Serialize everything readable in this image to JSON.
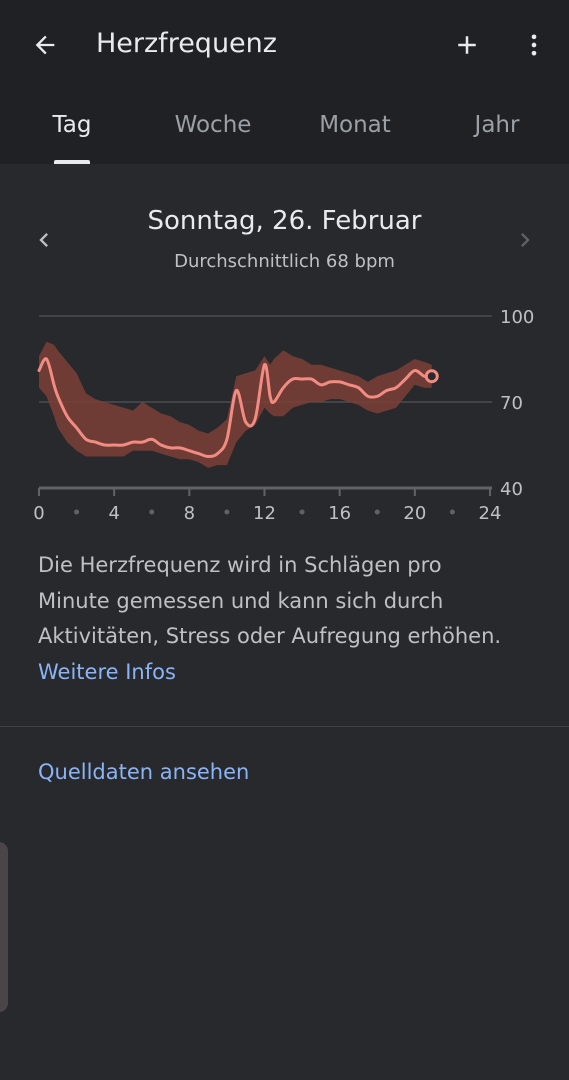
{
  "appbar": {
    "title": "Herzfrequenz",
    "back_icon": "arrow-left-icon",
    "add_icon": "plus-icon",
    "menu_icon": "more-vert-icon"
  },
  "tabs": [
    {
      "label": "Tag",
      "active": true
    },
    {
      "label": "Woche",
      "active": false
    },
    {
      "label": "Monat",
      "active": false
    },
    {
      "label": "Jahr",
      "active": false
    }
  ],
  "date": {
    "title": "Sonntag, 26. Februar",
    "subtitle": "Durchschnittlich 68 bpm",
    "prev_icon": "chevron-left-icon",
    "next_icon": "chevron-right-icon"
  },
  "chart_data": {
    "type": "line",
    "x": [
      0,
      0.4,
      0.8,
      1,
      1.5,
      2,
      2.5,
      3,
      3.5,
      4,
      4.5,
      5,
      5.5,
      6,
      6.5,
      7,
      7.5,
      8,
      8.5,
      9,
      9.5,
      10,
      10.5,
      11,
      11.5,
      12,
      12.3,
      12.5,
      13,
      13.5,
      14,
      14.5,
      15,
      15.5,
      16,
      16.5,
      17,
      17.5,
      18,
      18.5,
      19,
      19.5,
      20,
      20.5,
      20.9
    ],
    "y": [
      81,
      85,
      76,
      72,
      65,
      61,
      57,
      56,
      55,
      55,
      55,
      56,
      56,
      57,
      55,
      54,
      54,
      53,
      52,
      51,
      52,
      57,
      74,
      63,
      64,
      83,
      72,
      70,
      75,
      78,
      78,
      78,
      76,
      77,
      77,
      76,
      75,
      72,
      72,
      74,
      75,
      78,
      81,
      79,
      79
    ],
    "band_upper": [
      86,
      91,
      90,
      88,
      84,
      80,
      73,
      71,
      70,
      69,
      68,
      67,
      70,
      68,
      66,
      65,
      63,
      62,
      60,
      59,
      61,
      64,
      79,
      80,
      81,
      86,
      83,
      85,
      88,
      86,
      85,
      83,
      83,
      82,
      81,
      80,
      79,
      77,
      79,
      80,
      81,
      83,
      85,
      84,
      83
    ],
    "band_lower": [
      75,
      72,
      65,
      61,
      56,
      53,
      51,
      51,
      51,
      51,
      51,
      53,
      53,
      53,
      52,
      51,
      50,
      50,
      49,
      47,
      48,
      48,
      56,
      60,
      62,
      68,
      66,
      65,
      65,
      68,
      69,
      70,
      70,
      71,
      71,
      70,
      69,
      67,
      66,
      67,
      68,
      72,
      76,
      75,
      75
    ],
    "xlim": [
      0,
      24
    ],
    "ylim": [
      40,
      100
    ],
    "x_ticks": [
      "0",
      "4",
      "8",
      "12",
      "16",
      "20",
      "24"
    ],
    "y_ticks": [
      "100",
      "70",
      "40"
    ],
    "line_color": "#f28b82",
    "band_color": "#7a3f37",
    "grid": true
  },
  "description": {
    "text": "Die Herzfrequenz wird in Schlägen pro Minute gemessen und kann sich durch Aktivitäten, Stress oder Aufregung erhöhen.",
    "link": "Weitere Infos"
  },
  "source_link": "Quelldaten ansehen"
}
